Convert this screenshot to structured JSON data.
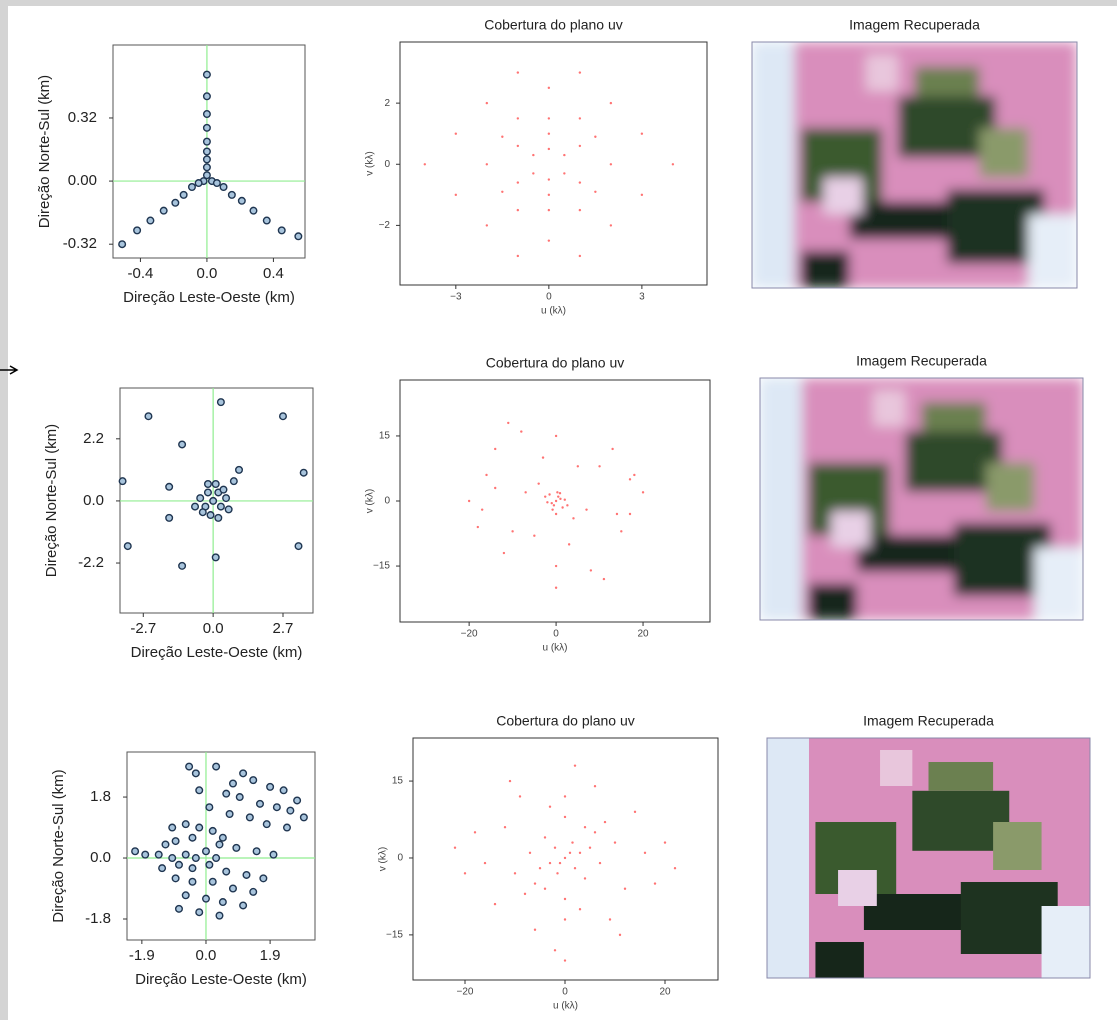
{
  "chart_data": [
    {
      "type": "scatter",
      "xlabel": "Direção Leste-Oeste (km)",
      "ylabel": "Direção Norte-Sul (km)",
      "x": [
        0,
        0,
        0,
        0,
        0,
        0,
        0,
        0,
        0,
        -0.02,
        -0.05,
        -0.09,
        -0.14,
        -0.19,
        -0.26,
        -0.34,
        -0.42,
        -0.51,
        0.03,
        0.06,
        0.1,
        0.15,
        0.21,
        0.28,
        0.36,
        0.45,
        0.55
      ],
      "values": [
        0.54,
        0.43,
        0.34,
        0.27,
        0.2,
        0.15,
        0.11,
        0.07,
        0.03,
        0.0,
        -0.01,
        -0.03,
        -0.07,
        -0.11,
        -0.15,
        -0.2,
        -0.25,
        -0.32,
        0.0,
        -0.01,
        -0.03,
        -0.07,
        -0.1,
        -0.15,
        -0.2,
        -0.25,
        -0.28
      ],
      "xlim": [
        -0.565,
        0.59
      ],
      "ylim": [
        -0.39,
        0.69
      ],
      "xticks": [
        -0.4,
        {
          "value": 0,
          "label": "0.0"
        },
        0.4
      ],
      "yticks": [
        -0.32,
        {
          "value": 0,
          "label": "0.00"
        },
        0.32
      ],
      "color": "#a8c4dc",
      "zero_lines": true
    },
    {
      "type": "scatter",
      "title": "Cobertura do plano uv",
      "xlabel": "u (kλ)",
      "ylabel": "v (kλ)",
      "x": [
        0,
        0,
        0,
        0,
        0,
        0,
        0.5,
        1,
        1.5,
        -0.5,
        -1,
        -1.5,
        -0.5,
        -1,
        -1.5,
        0.5,
        1,
        1.5,
        -3,
        -2,
        -1,
        1,
        2,
        3,
        3,
        2,
        1,
        -1,
        -2,
        -3,
        -4,
        4,
        -2,
        2,
        0,
        0,
        -1,
        1,
        1,
        -1
      ],
      "values": [
        0.5,
        1,
        1.5,
        -0.5,
        -1,
        -1.5,
        0.3,
        0.6,
        0.9,
        -0.3,
        -0.6,
        -0.9,
        0.3,
        0.6,
        0.9,
        -0.3,
        -0.6,
        -0.9,
        1,
        2,
        3,
        3,
        2,
        1,
        -1,
        -2,
        -3,
        -3,
        -2,
        -1,
        0,
        0,
        0,
        0,
        2.5,
        -2.5,
        1.5,
        1.5,
        -1.5,
        -1.5
      ],
      "xlim": [
        -4.8,
        5.1
      ],
      "ylim": [
        -3.95,
        4.0
      ],
      "xticks": [
        {
          "value": -3,
          "label": "−3"
        },
        0,
        3
      ],
      "yticks": [
        {
          "value": -2,
          "label": "−2"
        },
        0,
        2
      ],
      "color": "#ff5050"
    },
    {
      "type": "image",
      "title": "Imagem Recuperada"
    },
    {
      "type": "scatter",
      "xlabel": "Direção Leste-Oeste (km)",
      "ylabel": "Direção Norte-Sul (km)",
      "x": [
        -3.5,
        -3.3,
        -2.5,
        -1.2,
        -1.7,
        -1.2,
        0.3,
        2.7,
        3.5,
        3.3,
        0.1,
        1.0,
        0.8,
        -1.7,
        -0.7,
        0,
        0.2,
        -0.2,
        0.3,
        -0.3,
        0.1,
        -0.1,
        0.5,
        -0.5,
        0.4,
        -0.4,
        0.2,
        -0.2,
        0.6
      ],
      "values": [
        0.7,
        -1.6,
        3.0,
        2.0,
        -0.6,
        -2.3,
        3.5,
        3.0,
        1.0,
        -1.6,
        -2.0,
        1.1,
        0.7,
        0.5,
        -0.2,
        0,
        0.3,
        0.3,
        -0.2,
        -0.2,
        0.6,
        -0.5,
        0.1,
        0.1,
        0.4,
        -0.4,
        -0.6,
        0.6,
        -0.3
      ],
      "xlim": [
        -3.6,
        3.86
      ],
      "ylim": [
        -3.97,
        4.0
      ],
      "xticks": [
        -2.7,
        {
          "value": 0,
          "label": "0.0"
        },
        2.7
      ],
      "yticks": [
        -2.2,
        {
          "value": 0,
          "label": "0.0"
        },
        2.2
      ],
      "color": "#a8c4dc",
      "zero_lines": true
    },
    {
      "type": "scatter",
      "title": "Cobertura do plano uv",
      "xlabel": "u (kλ)",
      "ylabel": "v (kλ)",
      "x": [
        0,
        1,
        -1,
        0.5,
        -0.5,
        2,
        -2,
        1.5,
        -1.5,
        0.3,
        -0.8,
        0.9,
        -2.5,
        2.6,
        0,
        -4,
        4,
        -14,
        -16,
        -12,
        13,
        15,
        17,
        -8,
        8,
        -10,
        10,
        0,
        0,
        -17,
        17,
        -5,
        5,
        -18,
        18,
        -3,
        3,
        -14,
        14,
        -7,
        7,
        -20,
        20,
        0,
        -11,
        11
      ],
      "values": [
        0,
        0.5,
        -0.5,
        1,
        -1,
        0.3,
        -0.3,
        -1.5,
        1.5,
        2,
        -2,
        1.8,
        1,
        -1,
        -3,
        4,
        -4,
        12,
        6,
        -12,
        12,
        -7,
        5,
        16,
        -16,
        -7,
        8,
        15,
        -15,
        -2,
        -3,
        -8,
        8,
        -6,
        6,
        10,
        -10,
        3,
        -3,
        2,
        -2,
        0,
        2,
        -20,
        18,
        -18
      ],
      "xlim": [
        -35.9,
        35.4
      ],
      "ylim": [
        -27.9,
        27.9
      ],
      "xticks": [
        {
          "value": -20,
          "label": "−20"
        },
        0,
        20
      ],
      "yticks": [
        {
          "value": -15,
          "label": "−15"
        },
        0,
        15
      ],
      "color": "#ff5050"
    },
    {
      "type": "image",
      "title": "Imagem Recuperada"
    },
    {
      "type": "scatter",
      "xlabel": "Direção Leste-Oeste (km)",
      "ylabel": "Direção Norte-Sul (km)",
      "x": [
        -0.5,
        -0.3,
        0.3,
        0.8,
        1.1,
        1.4,
        1.9,
        2.3,
        2.7,
        -0.2,
        0.6,
        1.0,
        1.6,
        2.1,
        2.5,
        2.9,
        0.1,
        0.7,
        1.3,
        1.8,
        2.4,
        -1.0,
        -0.6,
        -0.2,
        0.2,
        0.5,
        -1.2,
        -0.9,
        -0.4,
        0.4,
        0.9,
        1.5,
        2.0,
        -2.1,
        -1.8,
        -1.4,
        -1.0,
        -0.6,
        -0.3,
        0.0,
        0.3,
        -1.3,
        -0.8,
        -0.4,
        0.1,
        0.6,
        1.2,
        1.7,
        -0.9,
        -0.4,
        0.2,
        0.8,
        1.4,
        -0.6,
        0.0,
        0.5,
        1.1,
        -0.2,
        0.4,
        -0.8
      ],
      "values": [
        2.7,
        2.5,
        2.7,
        2.2,
        2.5,
        2.3,
        2.1,
        2.0,
        1.7,
        2.0,
        1.9,
        1.8,
        1.6,
        1.5,
        1.4,
        1.2,
        1.5,
        1.3,
        1.2,
        1.0,
        0.9,
        0.9,
        1.0,
        0.9,
        0.8,
        0.6,
        0.4,
        0.5,
        0.6,
        0.4,
        0.3,
        0.2,
        0.1,
        0.2,
        0.1,
        0.1,
        0.0,
        0.1,
        0.0,
        0.2,
        0.0,
        -0.3,
        -0.2,
        -0.3,
        -0.2,
        -0.4,
        -0.5,
        -0.6,
        -0.6,
        -0.7,
        -0.7,
        -0.9,
        -1.0,
        -1.1,
        -1.2,
        -1.3,
        -1.4,
        -1.6,
        -1.7,
        -1.5
      ],
      "xlim": [
        -2.34,
        3.23
      ],
      "ylim": [
        -2.42,
        3.13
      ],
      "xticks": [
        -1.9,
        {
          "value": 0,
          "label": "0.0"
        },
        1.9
      ],
      "yticks": [
        -1.8,
        {
          "value": 0,
          "label": "0.0"
        },
        1.8
      ],
      "color": "#a8c4dc",
      "zero_lines": true
    },
    {
      "type": "scatter",
      "title": "Cobertura do plano uv",
      "xlabel": "u (kλ)",
      "ylabel": "v (kλ)",
      "x": [
        0,
        1,
        -1,
        2,
        -2,
        3,
        -3,
        1.5,
        -1.5,
        4,
        -4,
        5,
        -5,
        6,
        -6,
        7,
        -7,
        8,
        -8,
        10,
        -10,
        12,
        -12,
        14,
        -14,
        16,
        -16,
        18,
        -18,
        20,
        -20,
        22,
        -22,
        0,
        0,
        0,
        0,
        3,
        -3,
        6,
        -6,
        9,
        -9,
        2,
        -2,
        11,
        -11,
        4,
        -4,
        0
      ],
      "values": [
        0,
        1,
        -1,
        -2,
        2,
        1,
        -1,
        3,
        -3,
        -4,
        4,
        2,
        -2,
        5,
        -5,
        -1,
        1,
        7,
        -7,
        3,
        -3,
        -6,
        6,
        9,
        -9,
        1,
        -1,
        -5,
        5,
        3,
        -3,
        -2,
        2,
        8,
        -8,
        12,
        -12,
        -10,
        10,
        14,
        -14,
        -12,
        12,
        18,
        -18,
        -15,
        15,
        6,
        -6,
        -20
      ],
      "xlim": [
        -30.4,
        30.6
      ],
      "ylim": [
        -23.8,
        23.4
      ],
      "xticks": [
        {
          "value": -20,
          "label": "−20"
        },
        0,
        20
      ],
      "yticks": [
        {
          "value": -15,
          "label": "−15"
        },
        0,
        15
      ],
      "color": "#ff5050"
    },
    {
      "type": "image",
      "title": "Imagem Recuperada"
    }
  ]
}
